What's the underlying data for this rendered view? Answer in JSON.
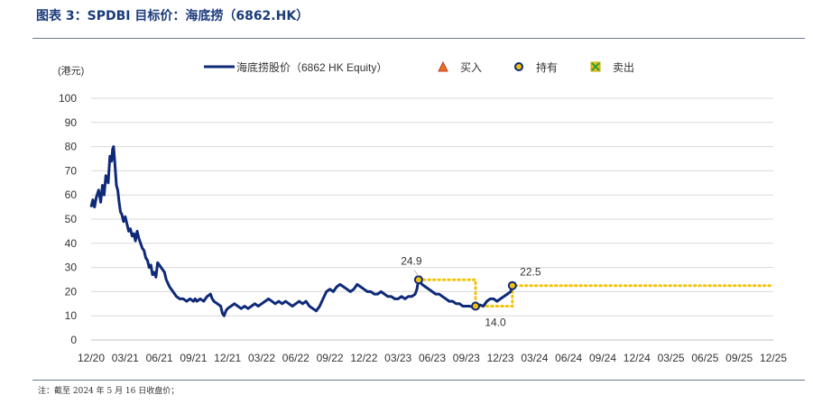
{
  "figure_title": "图表 3：SPDBI 目标价：海底捞（6862.HK）",
  "footnote": "注：截至 2024 年 5 月 16 日收盘价；",
  "colors": {
    "price": "#0e2a78",
    "marker_edge": "#0e2a78",
    "target": "#f2c40f",
    "buy": "#e8731a",
    "hold": "#f2c40f",
    "sell": "#2e9e3e",
    "grid": "#d9d9d9"
  },
  "chart_data": {
    "type": "line",
    "ylabel": "(港元)",
    "ylim": [
      0,
      100
    ],
    "yticks": [
      0,
      10,
      20,
      30,
      40,
      50,
      60,
      70,
      80,
      90,
      100
    ],
    "xticks": [
      "12/20",
      "03/21",
      "06/21",
      "09/21",
      "12/21",
      "03/22",
      "06/22",
      "09/22",
      "12/22",
      "03/23",
      "06/23",
      "09/23",
      "12/23",
      "03/24",
      "06/24",
      "09/24",
      "12/24",
      "03/25",
      "06/25",
      "09/25",
      "12/25"
    ],
    "grid": "horizontal",
    "legend": {
      "position": "top",
      "entries": [
        {
          "label": "海底捞股价（6862 HK Equity）",
          "kind": "line",
          "icon": "line"
        },
        {
          "label": "买入",
          "kind": "buy",
          "icon": "triangle-icon"
        },
        {
          "label": "持有",
          "kind": "hold",
          "icon": "circle-icon"
        },
        {
          "label": "卖出",
          "kind": "sell",
          "icon": "x-square-icon"
        }
      ]
    },
    "price_series": {
      "name": "海底捞股价（6862 HK Equity）",
      "points": [
        [
          0.0,
          55
        ],
        [
          0.05,
          58
        ],
        [
          0.1,
          55
        ],
        [
          0.15,
          59
        ],
        [
          0.22,
          62
        ],
        [
          0.28,
          57
        ],
        [
          0.33,
          64
        ],
        [
          0.38,
          60
        ],
        [
          0.43,
          68
        ],
        [
          0.5,
          65
        ],
        [
          0.55,
          76
        ],
        [
          0.6,
          74
        ],
        [
          0.63,
          79
        ],
        [
          0.66,
          80
        ],
        [
          0.7,
          72
        ],
        [
          0.74,
          64
        ],
        [
          0.78,
          62
        ],
        [
          0.82,
          57
        ],
        [
          0.86,
          53
        ],
        [
          0.9,
          52
        ],
        [
          0.95,
          49
        ],
        [
          1.0,
          51
        ],
        [
          1.05,
          48
        ],
        [
          1.1,
          45
        ],
        [
          1.15,
          46
        ],
        [
          1.2,
          43
        ],
        [
          1.25,
          44
        ],
        [
          1.3,
          41
        ],
        [
          1.35,
          45
        ],
        [
          1.4,
          42
        ],
        [
          1.45,
          40
        ],
        [
          1.5,
          38
        ],
        [
          1.55,
          37
        ],
        [
          1.6,
          34
        ],
        [
          1.65,
          33
        ],
        [
          1.7,
          30
        ],
        [
          1.75,
          31
        ],
        [
          1.8,
          27
        ],
        [
          1.85,
          28
        ],
        [
          1.9,
          26
        ],
        [
          1.95,
          32
        ],
        [
          2.0,
          31
        ],
        [
          2.05,
          30
        ],
        [
          2.1,
          29
        ],
        [
          2.15,
          28
        ],
        [
          2.2,
          25
        ],
        [
          2.3,
          22
        ],
        [
          2.4,
          20
        ],
        [
          2.5,
          18
        ],
        [
          2.6,
          17
        ],
        [
          2.7,
          17
        ],
        [
          2.8,
          16
        ],
        [
          2.9,
          17
        ],
        [
          3.0,
          16
        ],
        [
          3.05,
          17
        ],
        [
          3.1,
          16
        ],
        [
          3.2,
          17
        ],
        [
          3.3,
          16
        ],
        [
          3.4,
          18
        ],
        [
          3.5,
          19
        ],
        [
          3.55,
          17
        ],
        [
          3.6,
          16
        ],
        [
          3.7,
          15
        ],
        [
          3.8,
          14
        ],
        [
          3.85,
          11
        ],
        [
          3.9,
          10
        ],
        [
          3.95,
          12
        ],
        [
          4.0,
          13
        ],
        [
          4.1,
          14
        ],
        [
          4.2,
          15
        ],
        [
          4.3,
          14
        ],
        [
          4.4,
          13
        ],
        [
          4.5,
          14
        ],
        [
          4.6,
          13
        ],
        [
          4.7,
          14
        ],
        [
          4.8,
          15
        ],
        [
          4.9,
          14
        ],
        [
          5.0,
          15
        ],
        [
          5.1,
          16
        ],
        [
          5.2,
          17
        ],
        [
          5.3,
          16
        ],
        [
          5.4,
          15
        ],
        [
          5.5,
          16
        ],
        [
          5.6,
          15
        ],
        [
          5.7,
          16
        ],
        [
          5.8,
          15
        ],
        [
          5.9,
          14
        ],
        [
          6.0,
          15
        ],
        [
          6.1,
          16
        ],
        [
          6.2,
          15
        ],
        [
          6.3,
          16
        ],
        [
          6.4,
          14
        ],
        [
          6.5,
          13
        ],
        [
          6.6,
          12
        ],
        [
          6.7,
          14
        ],
        [
          6.8,
          17
        ],
        [
          6.9,
          20
        ],
        [
          7.0,
          21
        ],
        [
          7.1,
          20
        ],
        [
          7.2,
          22
        ],
        [
          7.3,
          23
        ],
        [
          7.4,
          22
        ],
        [
          7.5,
          21
        ],
        [
          7.6,
          20
        ],
        [
          7.7,
          21
        ],
        [
          7.8,
          23
        ],
        [
          7.9,
          22
        ],
        [
          8.0,
          21
        ],
        [
          8.1,
          20
        ],
        [
          8.2,
          20
        ],
        [
          8.3,
          19
        ],
        [
          8.4,
          19
        ],
        [
          8.5,
          20
        ],
        [
          8.6,
          19
        ],
        [
          8.7,
          18
        ],
        [
          8.8,
          18
        ],
        [
          8.9,
          17
        ],
        [
          9.0,
          17
        ],
        [
          9.1,
          18
        ],
        [
          9.2,
          17
        ],
        [
          9.3,
          18
        ],
        [
          9.4,
          18
        ],
        [
          9.5,
          19
        ],
        [
          9.55,
          21
        ],
        [
          9.6,
          24.9
        ],
        [
          9.65,
          24
        ],
        [
          9.7,
          23
        ],
        [
          9.8,
          22
        ],
        [
          9.9,
          21
        ],
        [
          10.0,
          20
        ],
        [
          10.1,
          19
        ],
        [
          10.2,
          19
        ],
        [
          10.3,
          18
        ],
        [
          10.4,
          17
        ],
        [
          10.5,
          16
        ],
        [
          10.6,
          16
        ],
        [
          10.7,
          15
        ],
        [
          10.8,
          15
        ],
        [
          10.9,
          14
        ],
        [
          11.0,
          14
        ],
        [
          11.1,
          14
        ],
        [
          11.2,
          13.5
        ],
        [
          11.3,
          14.0
        ],
        [
          11.4,
          14.5
        ],
        [
          11.5,
          14
        ],
        [
          11.6,
          16
        ],
        [
          11.7,
          17
        ],
        [
          11.8,
          17
        ],
        [
          11.9,
          16
        ],
        [
          12.0,
          17
        ],
        [
          12.1,
          18
        ],
        [
          12.2,
          19
        ],
        [
          12.3,
          20
        ],
        [
          12.35,
          22.5
        ]
      ]
    },
    "target_series": {
      "points": [
        [
          9.6,
          24.9
        ],
        [
          11.27,
          24.9
        ],
        [
          11.27,
          14.0
        ],
        [
          12.35,
          14.0
        ],
        [
          12.35,
          22.5
        ],
        [
          20.0,
          22.5
        ]
      ]
    },
    "markers": [
      {
        "kind": "hold",
        "x": 9.6,
        "y": 24.9,
        "label": "24.9",
        "label_pos": "above-left"
      },
      {
        "kind": "hold",
        "x": 11.27,
        "y": 14.0,
        "label": "14.0",
        "label_pos": "below"
      },
      {
        "kind": "hold",
        "x": 12.35,
        "y": 22.5,
        "label": "22.5",
        "label_pos": "above-right"
      }
    ]
  }
}
